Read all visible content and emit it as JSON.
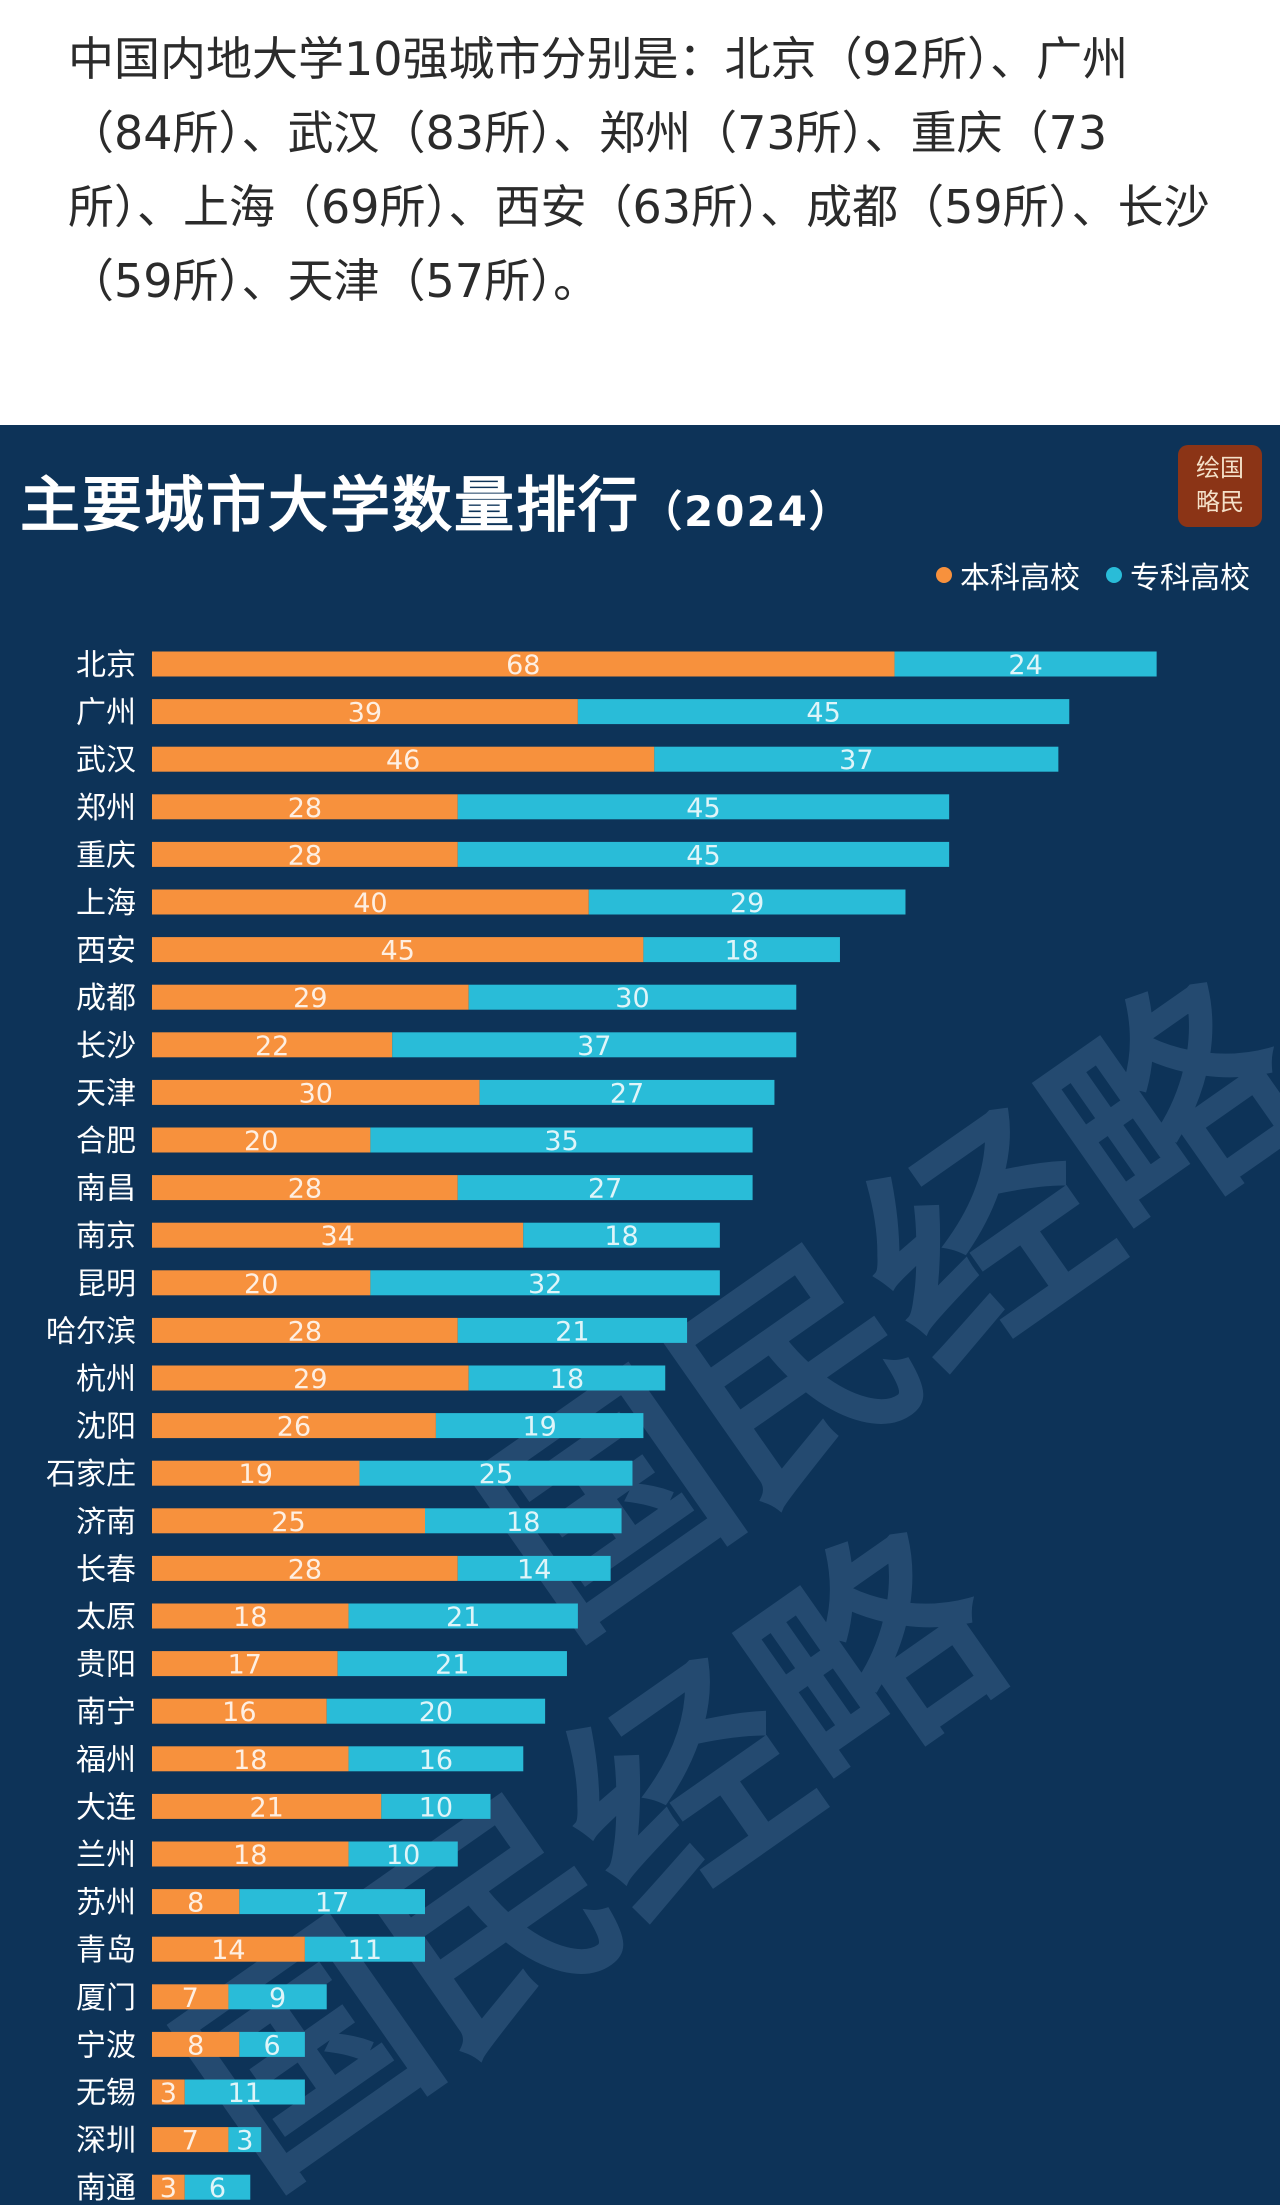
{
  "intro_text": "中国内地大学10强城市分别是：北京（92所）、广州（84所）、武汉（83所）、郑州（73所）、重庆（73所）、上海（69所）、西安（63所）、成都（59所）、长沙（59所）、天津（57所）。",
  "logo_text": [
    "绘国",
    "略民"
  ],
  "watermark": "国民经略",
  "colors": {
    "background": "#0d3358",
    "undergrad": "#f7913d",
    "junior": "#29bcd8"
  },
  "chart_data": {
    "type": "bar",
    "orientation": "horizontal",
    "stacked": true,
    "title": "主要城市大学数量排行",
    "subtitle": "（2024）",
    "legend_position": "top-right",
    "grid": false,
    "categories": [
      "北京",
      "广州",
      "武汉",
      "郑州",
      "重庆",
      "上海",
      "西安",
      "成都",
      "长沙",
      "天津",
      "合肥",
      "南昌",
      "南京",
      "昆明",
      "哈尔滨",
      "杭州",
      "沈阳",
      "石家庄",
      "济南",
      "长春",
      "太原",
      "贵阳",
      "南宁",
      "福州",
      "大连",
      "兰州",
      "苏州",
      "青岛",
      "厦门",
      "宁波",
      "无锡",
      "深圳",
      "南通"
    ],
    "series": [
      {
        "name": "本科高校",
        "color": "#f7913d",
        "values": [
          68,
          39,
          46,
          28,
          28,
          40,
          45,
          29,
          22,
          30,
          20,
          28,
          34,
          20,
          28,
          29,
          26,
          19,
          25,
          28,
          18,
          17,
          16,
          18,
          21,
          18,
          8,
          14,
          7,
          8,
          3,
          7,
          3
        ]
      },
      {
        "name": "专科高校",
        "color": "#29bcd8",
        "values": [
          24,
          45,
          37,
          45,
          45,
          29,
          18,
          30,
          37,
          27,
          35,
          27,
          18,
          32,
          21,
          18,
          19,
          25,
          18,
          14,
          21,
          21,
          20,
          16,
          10,
          10,
          17,
          11,
          9,
          6,
          11,
          3,
          6
        ]
      }
    ]
  }
}
